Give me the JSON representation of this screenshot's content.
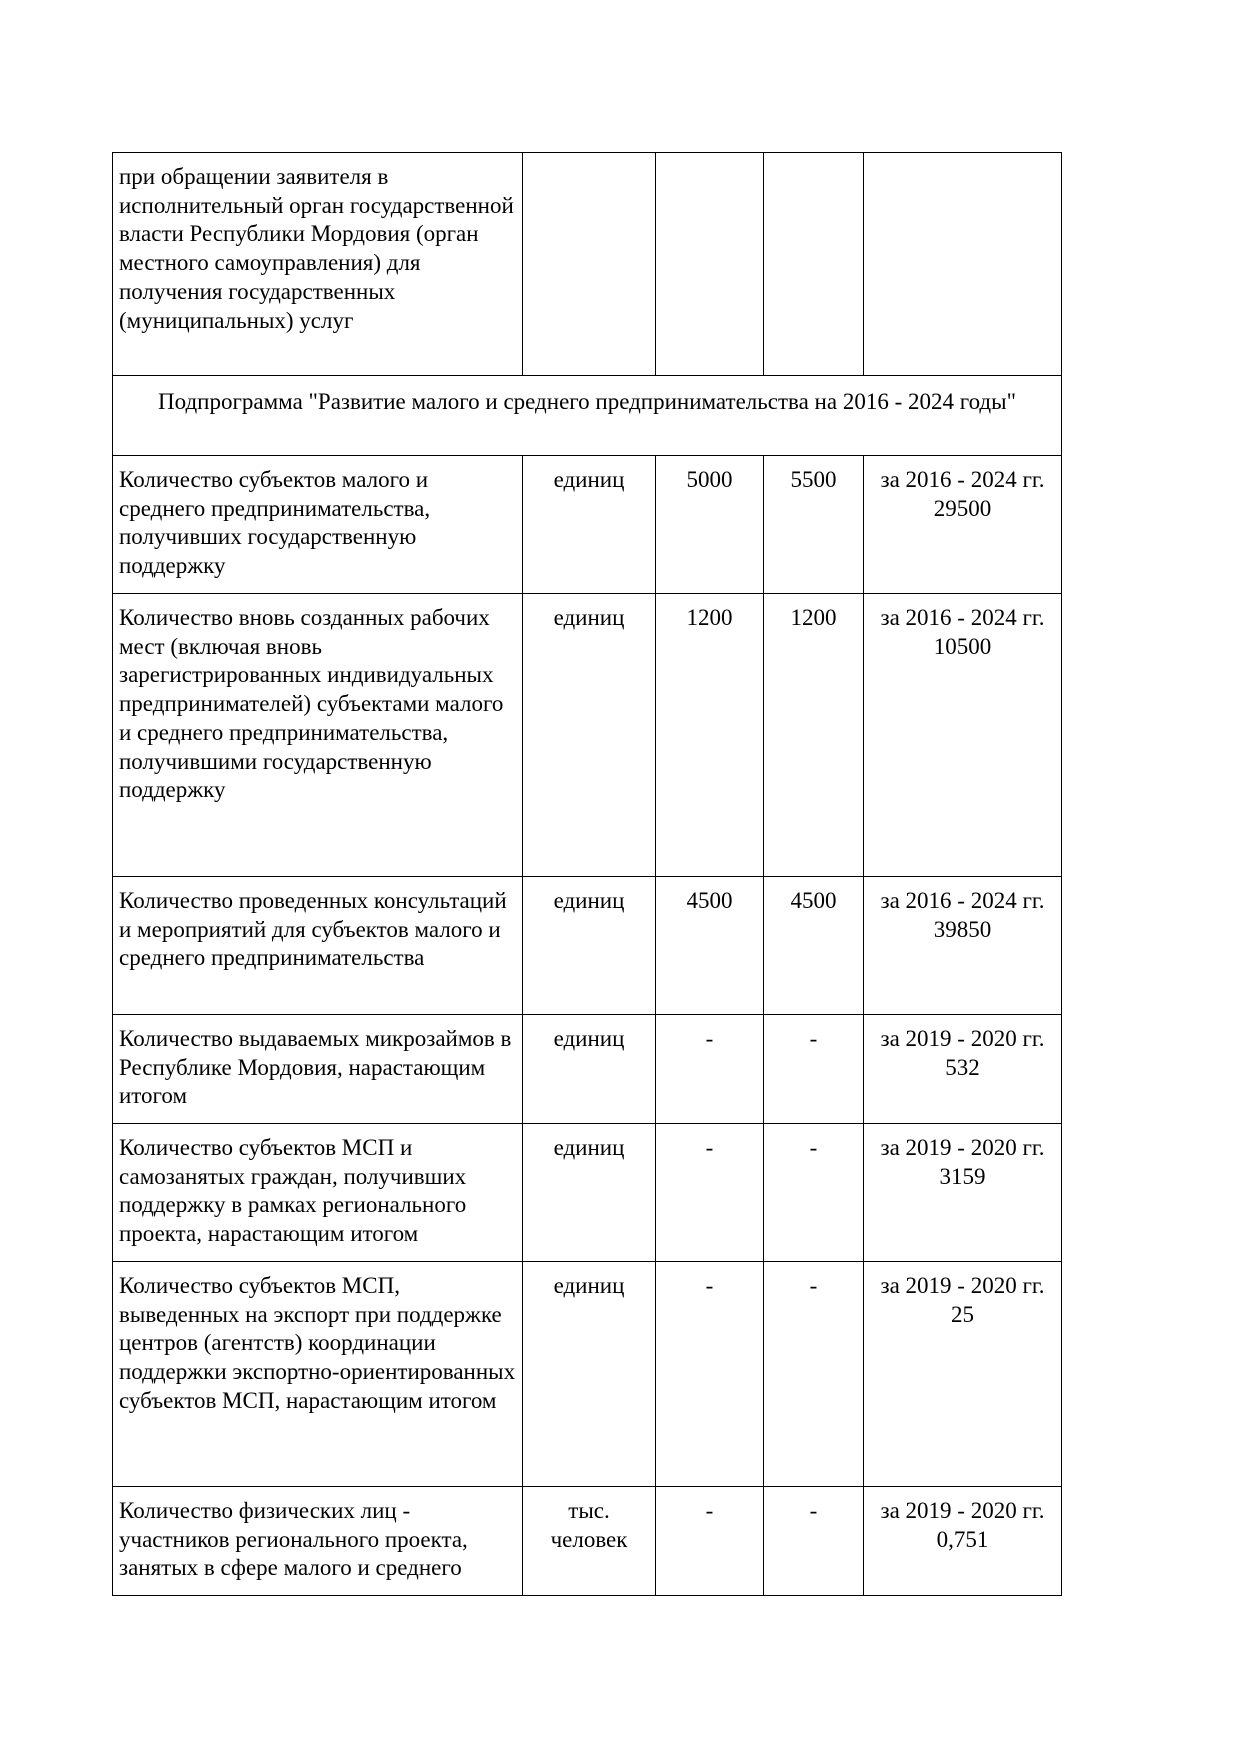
{
  "table": {
    "continuation_row": {
      "name": "при обращении заявителя в исполнительный орган государственной власти Республики Мордовия (орган местного самоуправления) для получения государственных (муниципальных) услуг",
      "unit": "",
      "v1": "",
      "v2": "",
      "total": ""
    },
    "section_title": "Подпрограмма \"Развитие малого и среднего предпринимательства на 2016 - 2024 годы\"",
    "rows": [
      {
        "name": "Количество субъектов малого и среднего предпринимательства, получивших государственную поддержку",
        "unit": "единиц",
        "v1": "5000",
        "v2": "5500",
        "period": "за 2016 - 2024 гг.",
        "total": "29500"
      },
      {
        "name": "Количество вновь созданных рабочих мест (включая вновь зарегистрированных индивидуальных предпринимателей) субъектами малого и среднего предпринимательства, получившими государственную поддержку",
        "unit": "единиц",
        "v1": "1200",
        "v2": "1200",
        "period": "за 2016 - 2024 гг.",
        "total": "10500"
      },
      {
        "name": "Количество проведенных консультаций и мероприятий для субъектов малого и среднего предпринимательства",
        "unit": "единиц",
        "v1": "4500",
        "v2": "4500",
        "period": "за 2016 - 2024 гг.",
        "total": "39850"
      },
      {
        "name": "Количество выдаваемых микрозаймов в Республике Мордовия, нарастающим итогом",
        "unit": "единиц",
        "v1": "-",
        "v2": "-",
        "period": "за 2019 - 2020 гг.",
        "total": "532"
      },
      {
        "name": "Количество субъектов МСП и самозанятых граждан, получивших поддержку в рамках регионального проекта, нарастающим итогом",
        "unit": "единиц",
        "v1": "-",
        "v2": "-",
        "period": "за 2019 - 2020 гг.",
        "total": "3159"
      },
      {
        "name": "Количество субъектов МСП, выведенных на экспорт при поддержке центров (агентств) координации поддержки экспортно-ориентированных субъектов МСП, нарастающим итогом",
        "unit": "единиц",
        "v1": "-",
        "v2": "-",
        "period": "за 2019 - 2020 гг.",
        "total": "25"
      },
      {
        "name": "Количество физических лиц - участников регионального проекта, занятых в сфере малого и среднего",
        "unit": "тыс. человек",
        "v1": "-",
        "v2": "-",
        "period": "за 2019 - 2020 гг.",
        "total": "0,751"
      }
    ]
  }
}
